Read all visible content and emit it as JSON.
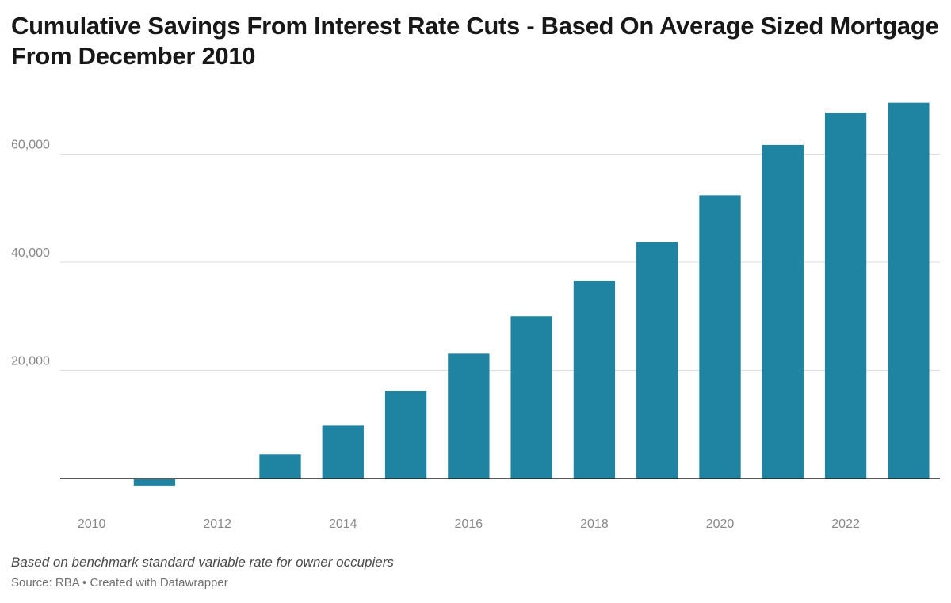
{
  "title": "Cumulative Savings From Interest Rate Cuts - Based On Average Sized Mortgage From December 2010",
  "footer": {
    "note": "Based on benchmark standard variable rate for owner occupiers",
    "source": "Source: RBA • Created with Datawrapper"
  },
  "colors": {
    "bar": "#1f83a2",
    "grid": "#dddddd",
    "baseline": "#222222",
    "tick_text": "#888888"
  },
  "chart_data": {
    "type": "bar",
    "title": "Cumulative Savings From Interest Rate Cuts - Based On Average Sized Mortgage From December 2010",
    "xlabel": "",
    "ylabel": "",
    "categories": [
      2010,
      2011,
      2012,
      2013,
      2014,
      2015,
      2016,
      2017,
      2018,
      2019,
      2020,
      2021,
      2022,
      2023
    ],
    "values": [
      0,
      -1300,
      0,
      4500,
      9900,
      16200,
      23100,
      30000,
      36600,
      43700,
      52400,
      61700,
      67700,
      69500
    ],
    "ylim": [
      -3500,
      72000
    ],
    "yticks": [
      20000,
      40000,
      60000
    ],
    "ytick_labels": [
      "20,000",
      "40,000",
      "60,000"
    ],
    "xticks": [
      "2010",
      "2012",
      "2014",
      "2016",
      "2018",
      "2020",
      "2022"
    ],
    "grid": true
  }
}
